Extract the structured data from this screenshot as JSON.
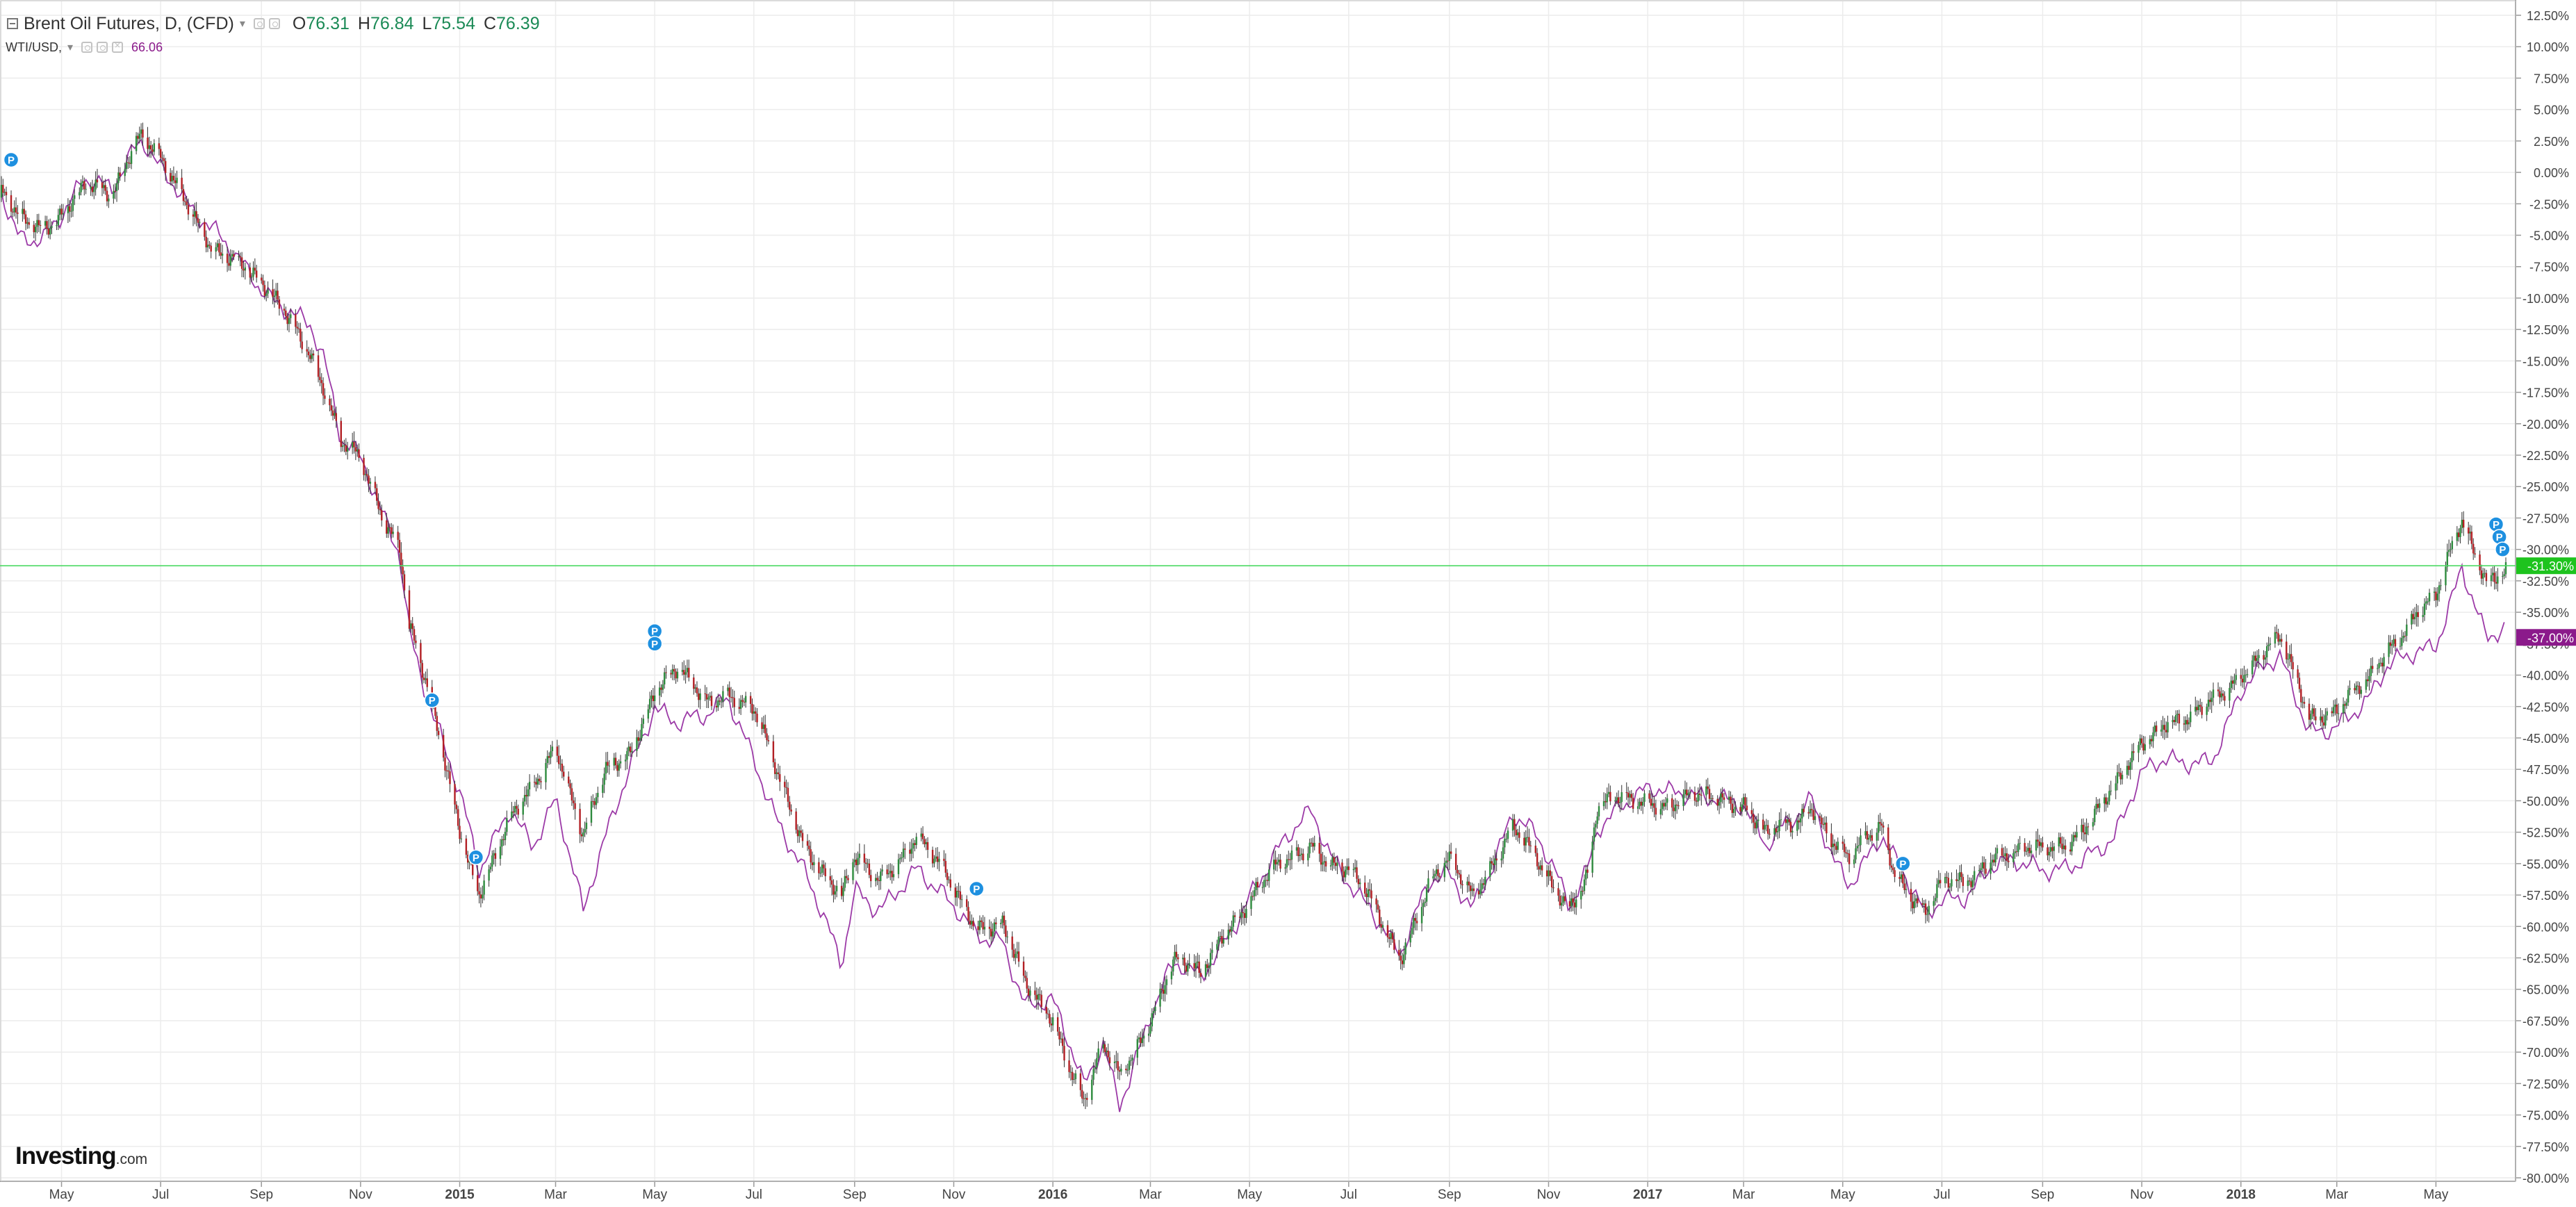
{
  "legend": {
    "symbol": "Brent Oil Futures, D, (CFD)",
    "open_label": "O",
    "open": "76.31",
    "high_label": "H",
    "high": "76.84",
    "low_label": "L",
    "low": "75.54",
    "close_label": "C",
    "close": "76.39",
    "compare_symbol": "WTI/USD,",
    "compare_value": "66.06"
  },
  "logo": {
    "brand": "Investing",
    "domain": ".com"
  },
  "colors": {
    "up_candle": "#2e8b3e",
    "down_candle": "#b21f24",
    "compare_line": "#9c3aa7",
    "current_line": "#4cd964",
    "badge_current_bg": "#1ec31e",
    "badge_compare_bg": "#8b1a8b",
    "marker_bg": "#1e90e0",
    "grid": "#ececec",
    "axis_text": "#444444"
  },
  "chart_data": {
    "type": "candlestick",
    "title": "Brent Oil Futures, D, (CFD)",
    "y_axis_unit": "percent change",
    "ylim": [
      -80,
      12.5
    ],
    "y_ticks": [
      "12.50%",
      "10.00%",
      "7.50%",
      "5.00%",
      "2.50%",
      "0.00%",
      "-2.50%",
      "-5.00%",
      "-7.50%",
      "-10.00%",
      "-12.50%",
      "-15.00%",
      "-17.50%",
      "-20.00%",
      "-22.50%",
      "-25.00%",
      "-27.50%",
      "-30.00%",
      "-32.50%",
      "-35.00%",
      "-37.50%",
      "-40.00%",
      "-42.50%",
      "-45.00%",
      "-47.50%",
      "-50.00%",
      "-52.50%",
      "-55.00%",
      "-57.50%",
      "-60.00%",
      "-62.50%",
      "-65.00%",
      "-67.50%",
      "-70.00%",
      "-72.50%",
      "-75.00%",
      "-77.50%",
      "-80.00%"
    ],
    "x_ticks": [
      {
        "label": "May",
        "date": "2014-05-01"
      },
      {
        "label": "Jul",
        "date": "2014-07-01"
      },
      {
        "label": "Sep",
        "date": "2014-09-01"
      },
      {
        "label": "Nov",
        "date": "2014-11-01"
      },
      {
        "label": "2015",
        "date": "2015-01-01",
        "bold": true
      },
      {
        "label": "Mar",
        "date": "2015-03-01"
      },
      {
        "label": "May",
        "date": "2015-05-01"
      },
      {
        "label": "Jul",
        "date": "2015-07-01"
      },
      {
        "label": "Sep",
        "date": "2015-09-01"
      },
      {
        "label": "Nov",
        "date": "2015-11-01"
      },
      {
        "label": "2016",
        "date": "2016-01-01",
        "bold": true
      },
      {
        "label": "Mar",
        "date": "2016-03-01"
      },
      {
        "label": "May",
        "date": "2016-05-01"
      },
      {
        "label": "Jul",
        "date": "2016-07-01"
      },
      {
        "label": "Sep",
        "date": "2016-09-01"
      },
      {
        "label": "Nov",
        "date": "2016-11-01"
      },
      {
        "label": "2017",
        "date": "2017-01-01",
        "bold": true
      },
      {
        "label": "Mar",
        "date": "2017-03-01"
      },
      {
        "label": "May",
        "date": "2017-05-01"
      },
      {
        "label": "Jul",
        "date": "2017-07-01"
      },
      {
        "label": "Sep",
        "date": "2017-09-01"
      },
      {
        "label": "Nov",
        "date": "2017-11-01"
      },
      {
        "label": "2018",
        "date": "2018-01-01",
        "bold": true
      },
      {
        "label": "Mar",
        "date": "2018-03-01"
      },
      {
        "label": "May",
        "date": "2018-05-01"
      }
    ],
    "x_range": [
      "2014-03-25",
      "2018-06-13"
    ],
    "series": [
      {
        "name": "Brent Oil Futures",
        "style": "candles",
        "points": [
          [
            "2014-03-25",
            -2.0
          ],
          [
            "2014-04-05",
            -4.0
          ],
          [
            "2014-04-20",
            -4.0
          ],
          [
            "2014-05-01",
            -3.0
          ],
          [
            "2014-05-15",
            -1.5
          ],
          [
            "2014-06-01",
            -2.0
          ],
          [
            "2014-06-15",
            3.0
          ],
          [
            "2014-06-20",
            3.5
          ],
          [
            "2014-07-01",
            1.0
          ],
          [
            "2014-07-10",
            -1.5
          ],
          [
            "2014-07-20",
            -3.5
          ],
          [
            "2014-08-01",
            -5.5
          ],
          [
            "2014-08-15",
            -6.5
          ],
          [
            "2014-09-01",
            -9.5
          ],
          [
            "2014-09-20",
            -11.5
          ],
          [
            "2014-10-01",
            -14.0
          ],
          [
            "2014-10-10",
            -17.5
          ],
          [
            "2014-10-20",
            -22.0
          ],
          [
            "2014-11-01",
            -23.0
          ],
          [
            "2014-11-15",
            -27.0
          ],
          [
            "2014-11-25",
            -29.5
          ],
          [
            "2014-12-01",
            -36.0
          ],
          [
            "2014-12-15",
            -43.0
          ],
          [
            "2015-01-01",
            -52.0
          ],
          [
            "2015-01-13",
            -57.0
          ],
          [
            "2015-02-01",
            -52.0
          ],
          [
            "2015-02-15",
            -49.0
          ],
          [
            "2015-03-01",
            -45.0
          ],
          [
            "2015-03-18",
            -53.0
          ],
          [
            "2015-04-01",
            -48.0
          ],
          [
            "2015-04-15",
            -46.0
          ],
          [
            "2015-05-01",
            -41.0
          ],
          [
            "2015-05-15",
            -40.0
          ],
          [
            "2015-06-01",
            -42.0
          ],
          [
            "2015-06-15",
            -41.0
          ],
          [
            "2015-07-01",
            -43.0
          ],
          [
            "2015-07-15",
            -48.0
          ],
          [
            "2015-08-01",
            -53.0
          ],
          [
            "2015-08-24",
            -58.0
          ],
          [
            "2015-09-01",
            -55.0
          ],
          [
            "2015-09-15",
            -56.0
          ],
          [
            "2015-10-09",
            -53.0
          ],
          [
            "2015-10-20",
            -55.0
          ],
          [
            "2015-11-01",
            -57.0
          ],
          [
            "2015-11-15",
            -59.5
          ],
          [
            "2015-12-01",
            -60.0
          ],
          [
            "2015-12-15",
            -65.0
          ],
          [
            "2016-01-01",
            -67.0
          ],
          [
            "2016-01-20",
            -74.0
          ],
          [
            "2016-02-01",
            -70.0
          ],
          [
            "2016-02-11",
            -72.0
          ],
          [
            "2016-03-01",
            -67.0
          ],
          [
            "2016-03-15",
            -63.0
          ],
          [
            "2016-04-01",
            -64.0
          ],
          [
            "2016-04-15",
            -60.0
          ],
          [
            "2016-05-01",
            -58.0
          ],
          [
            "2016-05-15",
            -56.0
          ],
          [
            "2016-06-08",
            -53.0
          ],
          [
            "2016-06-20",
            -55.0
          ],
          [
            "2016-07-01",
            -56.0
          ],
          [
            "2016-07-15",
            -58.0
          ],
          [
            "2016-08-02",
            -62.0
          ],
          [
            "2016-08-20",
            -57.0
          ],
          [
            "2016-09-01",
            -55.0
          ],
          [
            "2016-09-15",
            -57.0
          ],
          [
            "2016-10-10",
            -52.5
          ],
          [
            "2016-10-25",
            -55.0
          ],
          [
            "2016-11-14",
            -58.0
          ],
          [
            "2016-11-25",
            -56.0
          ],
          [
            "2016-12-01",
            -51.0
          ],
          [
            "2016-12-15",
            -50.0
          ],
          [
            "2017-01-01",
            -49.5
          ],
          [
            "2017-01-15",
            -50.5
          ],
          [
            "2017-02-01",
            -50.0
          ],
          [
            "2017-02-15",
            -49.5
          ],
          [
            "2017-03-01",
            -50.0
          ],
          [
            "2017-03-15",
            -53.0
          ],
          [
            "2017-04-01",
            -52.0
          ],
          [
            "2017-04-12",
            -50.0
          ],
          [
            "2017-04-25",
            -53.0
          ],
          [
            "2017-05-05",
            -55.0
          ],
          [
            "2017-05-25",
            -52.0
          ],
          [
            "2017-06-01",
            -55.0
          ],
          [
            "2017-06-21",
            -59.0
          ],
          [
            "2017-07-01",
            -57.0
          ],
          [
            "2017-07-15",
            -56.5
          ],
          [
            "2017-08-01",
            -54.0
          ],
          [
            "2017-08-15",
            -54.5
          ],
          [
            "2017-09-01",
            -54.0
          ],
          [
            "2017-09-15",
            -53.0
          ],
          [
            "2017-10-01",
            -51.5
          ],
          [
            "2017-10-15",
            -49.5
          ],
          [
            "2017-11-01",
            -45.0
          ],
          [
            "2017-11-15",
            -43.5
          ],
          [
            "2017-12-01",
            -44.0
          ],
          [
            "2017-12-15",
            -42.0
          ],
          [
            "2018-01-01",
            -39.5
          ],
          [
            "2018-01-25",
            -37.5
          ],
          [
            "2018-02-12",
            -43.0
          ],
          [
            "2018-03-01",
            -42.5
          ],
          [
            "2018-03-20",
            -41.0
          ],
          [
            "2018-04-01",
            -38.0
          ],
          [
            "2018-04-20",
            -34.5
          ],
          [
            "2018-05-01",
            -34.0
          ],
          [
            "2018-05-17",
            -28.0
          ],
          [
            "2018-06-01",
            -32.0
          ],
          [
            "2018-06-13",
            -31.3
          ]
        ]
      },
      {
        "name": "WTI/USD",
        "style": "line",
        "points": [
          [
            "2014-03-25",
            -2.0
          ],
          [
            "2014-04-05",
            -5.0
          ],
          [
            "2014-04-20",
            -4.5
          ],
          [
            "2014-05-01",
            -3.0
          ],
          [
            "2014-05-15",
            -1.0
          ],
          [
            "2014-06-01",
            -2.0
          ],
          [
            "2014-06-15",
            2.0
          ],
          [
            "2014-06-20",
            3.0
          ],
          [
            "2014-07-01",
            1.0
          ],
          [
            "2014-07-10",
            -0.5
          ],
          [
            "2014-07-20",
            -3.0
          ],
          [
            "2014-08-01",
            -5.0
          ],
          [
            "2014-08-15",
            -7.0
          ],
          [
            "2014-09-01",
            -9.0
          ],
          [
            "2014-09-20",
            -10.5
          ],
          [
            "2014-10-01",
            -12.0
          ],
          [
            "2014-10-10",
            -15.5
          ],
          [
            "2014-10-20",
            -22.0
          ],
          [
            "2014-11-01",
            -23.0
          ],
          [
            "2014-11-15",
            -27.0
          ],
          [
            "2014-11-25",
            -29.5
          ],
          [
            "2014-12-01",
            -36.0
          ],
          [
            "2014-12-15",
            -43.0
          ],
          [
            "2015-01-01",
            -50.0
          ],
          [
            "2015-01-13",
            -56.0
          ],
          [
            "2015-02-01",
            -50.0
          ],
          [
            "2015-02-15",
            -53.0
          ],
          [
            "2015-03-01",
            -50.0
          ],
          [
            "2015-03-18",
            -59.5
          ],
          [
            "2015-04-01",
            -53.0
          ],
          [
            "2015-04-15",
            -47.0
          ],
          [
            "2015-05-01",
            -42.0
          ],
          [
            "2015-05-15",
            -44.0
          ],
          [
            "2015-06-01",
            -44.0
          ],
          [
            "2015-06-15",
            -42.0
          ],
          [
            "2015-07-01",
            -46.0
          ],
          [
            "2015-07-15",
            -51.0
          ],
          [
            "2015-08-01",
            -56.0
          ],
          [
            "2015-08-24",
            -63.5
          ],
          [
            "2015-09-01",
            -57.0
          ],
          [
            "2015-09-15",
            -58.0
          ],
          [
            "2015-10-09",
            -55.5
          ],
          [
            "2015-10-20",
            -57.5
          ],
          [
            "2015-11-01",
            -59.0
          ],
          [
            "2015-11-15",
            -60.5
          ],
          [
            "2015-12-01",
            -60.5
          ],
          [
            "2015-12-15",
            -66.0
          ],
          [
            "2016-01-01",
            -66.5
          ],
          [
            "2016-01-20",
            -73.0
          ],
          [
            "2016-02-01",
            -69.0
          ],
          [
            "2016-02-11",
            -73.5
          ],
          [
            "2016-03-01",
            -67.0
          ],
          [
            "2016-03-15",
            -63.5
          ],
          [
            "2016-04-01",
            -64.5
          ],
          [
            "2016-04-15",
            -61.0
          ],
          [
            "2016-05-01",
            -57.0
          ],
          [
            "2016-05-15",
            -54.5
          ],
          [
            "2016-06-08",
            -51.5
          ],
          [
            "2016-06-20",
            -54.5
          ],
          [
            "2016-07-01",
            -56.0
          ],
          [
            "2016-07-15",
            -58.0
          ],
          [
            "2016-08-02",
            -62.5
          ],
          [
            "2016-08-20",
            -57.0
          ],
          [
            "2016-09-01",
            -56.0
          ],
          [
            "2016-09-15",
            -58.0
          ],
          [
            "2016-10-10",
            -51.0
          ],
          [
            "2016-10-25",
            -53.5
          ],
          [
            "2016-11-14",
            -58.5
          ],
          [
            "2016-11-25",
            -55.0
          ],
          [
            "2016-12-01",
            -51.5
          ],
          [
            "2016-12-15",
            -50.0
          ],
          [
            "2017-01-01",
            -49.5
          ],
          [
            "2017-01-15",
            -50.0
          ],
          [
            "2017-02-01",
            -49.5
          ],
          [
            "2017-02-15",
            -49.0
          ],
          [
            "2017-03-01",
            -50.0
          ],
          [
            "2017-03-15",
            -54.0
          ],
          [
            "2017-04-01",
            -52.0
          ],
          [
            "2017-04-12",
            -50.0
          ],
          [
            "2017-04-25",
            -54.0
          ],
          [
            "2017-05-05",
            -56.0
          ],
          [
            "2017-05-25",
            -53.0
          ],
          [
            "2017-06-01",
            -55.0
          ],
          [
            "2017-06-21",
            -59.5
          ],
          [
            "2017-07-01",
            -57.5
          ],
          [
            "2017-07-15",
            -57.0
          ],
          [
            "2017-08-01",
            -55.0
          ],
          [
            "2017-08-15",
            -55.5
          ],
          [
            "2017-09-01",
            -56.0
          ],
          [
            "2017-09-15",
            -55.0
          ],
          [
            "2017-10-01",
            -53.5
          ],
          [
            "2017-10-15",
            -53.0
          ],
          [
            "2017-11-01",
            -48.5
          ],
          [
            "2017-11-15",
            -47.0
          ],
          [
            "2017-12-01",
            -46.5
          ],
          [
            "2017-12-15",
            -46.0
          ],
          [
            "2018-01-01",
            -41.5
          ],
          [
            "2018-01-25",
            -39.0
          ],
          [
            "2018-02-12",
            -44.0
          ],
          [
            "2018-03-01",
            -43.5
          ],
          [
            "2018-03-20",
            -42.5
          ],
          [
            "2018-04-01",
            -40.0
          ],
          [
            "2018-04-20",
            -38.0
          ],
          [
            "2018-05-01",
            -37.0
          ],
          [
            "2018-05-17",
            -31.0
          ],
          [
            "2018-06-01",
            -37.5
          ],
          [
            "2018-06-13",
            -37.0
          ]
        ]
      }
    ],
    "current_values": [
      {
        "label": "-31.30%",
        "value": -31.3,
        "series": "Brent Oil Futures"
      },
      {
        "label": "-37.00%",
        "value": -37.0,
        "series": "WTI/USD"
      }
    ],
    "event_markers": [
      {
        "label": "P",
        "date": "2014-03-31",
        "value": 1.0
      },
      {
        "label": "P",
        "date": "2014-12-15",
        "value": -42.0
      },
      {
        "label": "P",
        "date": "2015-01-11",
        "value": -54.5
      },
      {
        "label": "P",
        "date": "2015-05-01",
        "value": -36.5
      },
      {
        "label": "P",
        "date": "2015-05-01",
        "value": -37.5
      },
      {
        "label": "P",
        "date": "2015-11-15",
        "value": -57.0
      },
      {
        "label": "P",
        "date": "2017-06-07",
        "value": -55.0
      },
      {
        "label": "P",
        "date": "2018-06-07",
        "value": -28.0
      },
      {
        "label": "P",
        "date": "2018-06-09",
        "value": -29.0
      },
      {
        "label": "P",
        "date": "2018-06-11",
        "value": -30.0
      }
    ]
  }
}
